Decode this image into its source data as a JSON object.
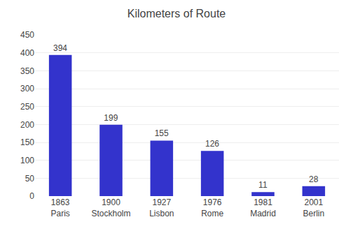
{
  "chart_data": {
    "type": "bar",
    "title": "Kilometers of Route",
    "categories": [
      "1863\nParis",
      "1900\nStockholm",
      "1927\nLisbon",
      "1976\nRome",
      "1981\nMadrid",
      "2001\nBerlin"
    ],
    "values": [
      394,
      199,
      155,
      126,
      11,
      28
    ],
    "color": "#3333cc",
    "ylim": [
      0,
      450
    ],
    "yticks": [
      0,
      50,
      100,
      150,
      200,
      250,
      300,
      350,
      400,
      450
    ],
    "grid": true,
    "data_labels": true
  }
}
